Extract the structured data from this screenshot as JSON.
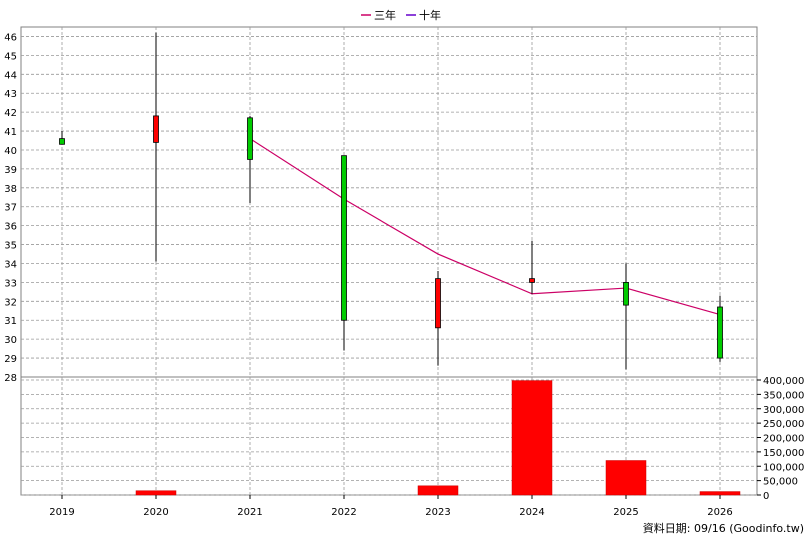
{
  "legend": [
    {
      "label": "三年",
      "color": "#cc0066"
    },
    {
      "label": "十年",
      "color": "#6600cc"
    }
  ],
  "footer": "資料日期: 09/16  (Goodinfo.tw)",
  "colors": {
    "up": "#00cc00",
    "down": "#ff0000",
    "volume": "#ff0000",
    "grid": "#999999",
    "ma3": "#cc0066"
  },
  "chart_data": [
    {
      "type": "candlestick",
      "title": "",
      "categories": [
        "2019",
        "2020",
        "2021",
        "2022",
        "2023",
        "2024",
        "2025",
        "2026"
      ],
      "ylim": [
        28,
        46.5
      ],
      "y_ticks": [
        28,
        29,
        30,
        31,
        32,
        33,
        34,
        35,
        36,
        37,
        38,
        39,
        40,
        41,
        42,
        43,
        44,
        45,
        46
      ],
      "grid": true,
      "candles": [
        {
          "year": "2019",
          "open": 40.3,
          "close": 40.6,
          "high": 41.0,
          "low": 40.3
        },
        {
          "year": "2020",
          "open": 41.8,
          "close": 40.4,
          "high": 46.2,
          "low": 34.1
        },
        {
          "year": "2021",
          "open": 39.5,
          "close": 41.7,
          "high": 41.8,
          "low": 37.2
        },
        {
          "year": "2022",
          "open": 31.0,
          "close": 39.7,
          "high": 39.7,
          "low": 29.4
        },
        {
          "year": "2023",
          "open": 33.2,
          "close": 30.6,
          "high": 33.6,
          "low": 28.6
        },
        {
          "year": "2024",
          "open": 33.2,
          "close": 33.0,
          "high": 35.2,
          "low": 32.4
        },
        {
          "year": "2025",
          "open": 31.8,
          "close": 33.0,
          "high": 34.0,
          "low": 28.4
        },
        {
          "year": "2026",
          "open": 29.0,
          "close": 31.7,
          "high": 32.3,
          "low": 28.8
        }
      ],
      "series": [
        {
          "name": "三年",
          "x": [
            "2021",
            "2022",
            "2023",
            "2024",
            "2025",
            "2026"
          ],
          "values": [
            40.6,
            37.4,
            34.5,
            32.4,
            32.7,
            31.3
          ]
        }
      ]
    },
    {
      "type": "bar",
      "categories": [
        "2019",
        "2020",
        "2021",
        "2022",
        "2023",
        "2024",
        "2025",
        "2026"
      ],
      "values": [
        0,
        15000,
        0,
        0,
        32000,
        398000,
        120000,
        12000
      ],
      "ylim": [
        0,
        400000
      ],
      "y_ticks": [
        "0",
        "50,000",
        "100,000",
        "150,000",
        "200,000",
        "250,000",
        "300,000",
        "350,000",
        "400,000"
      ],
      "y_tick_values": [
        0,
        50000,
        100000,
        150000,
        200000,
        250000,
        300000,
        350000,
        400000
      ],
      "grid": true
    }
  ]
}
